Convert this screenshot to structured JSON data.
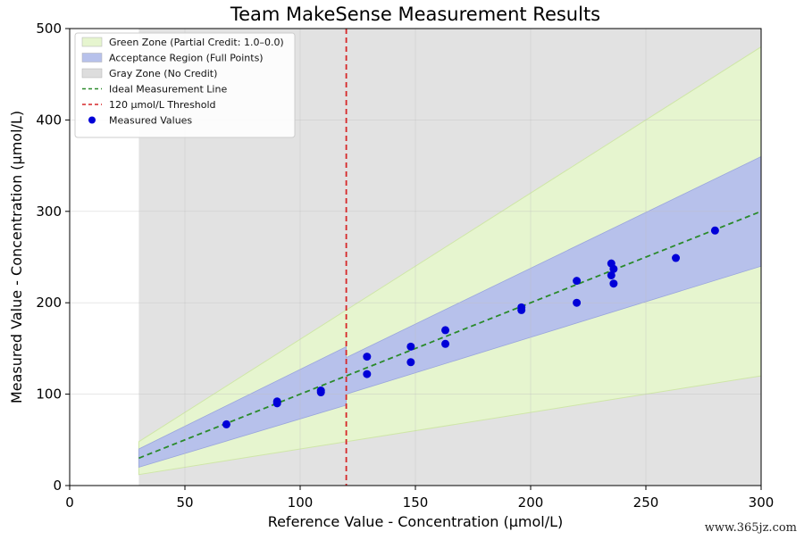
{
  "chart_data": {
    "type": "scatter",
    "title": "Team MakeSense Measurement Results",
    "xlabel": "Reference Value - Concentration (µmol/L)",
    "ylabel": "Measured Value - Concentration (µmol/L)",
    "xlim": [
      0,
      300
    ],
    "ylim": [
      0,
      500
    ],
    "xticks": [
      0,
      50,
      100,
      150,
      200,
      250,
      300
    ],
    "yticks": [
      0,
      100,
      200,
      300,
      400,
      500
    ],
    "grid": true,
    "legend_position": "top-left",
    "legend": [
      {
        "label": "Green Zone (Partial Credit: 1.0–0.0)",
        "kind": "patch",
        "color": "#e6f5cf"
      },
      {
        "label": "Acceptance Region (Full Points)",
        "kind": "patch",
        "color": "#b7c1eb"
      },
      {
        "label": "Gray Zone (No Credit)",
        "kind": "patch",
        "color": "#dddddd"
      },
      {
        "label": "Ideal Measurement Line",
        "kind": "dashed-line",
        "color": "#2a8a2a"
      },
      {
        "label": "120 µmol/L Threshold",
        "kind": "dashed-line",
        "color": "#d62728"
      },
      {
        "label": "Measured Values",
        "kind": "marker",
        "color": "#0000d8"
      }
    ],
    "gray_zone": {
      "x_from": 30,
      "x_to": 300,
      "color": "#e2e2e2"
    },
    "green_zone": {
      "upper": [
        [
          30,
          48
        ],
        [
          300,
          480
        ]
      ],
      "lower": [
        [
          30,
          12
        ],
        [
          300,
          120
        ]
      ],
      "color": "#e6f5cf"
    },
    "acceptance_region": {
      "upper": [
        [
          30,
          40
        ],
        [
          120,
          152
        ],
        [
          120,
          140
        ],
        [
          300,
          360
        ]
      ],
      "lower": [
        [
          30,
          20
        ],
        [
          120,
          88
        ],
        [
          120,
          100
        ],
        [
          300,
          240
        ]
      ],
      "color": "#b7c1eb"
    },
    "ideal_line": {
      "points": [
        [
          30,
          30
        ],
        [
          300,
          300
        ]
      ],
      "color": "#2a8a2a"
    },
    "threshold": {
      "x": 120,
      "color": "#d62728"
    },
    "series": [
      {
        "name": "Measured Values",
        "color": "#0000d8",
        "points": [
          [
            68,
            67
          ],
          [
            90,
            90
          ],
          [
            90,
            92
          ],
          [
            109,
            102
          ],
          [
            109,
            104
          ],
          [
            129,
            122
          ],
          [
            129,
            141
          ],
          [
            148,
            135
          ],
          [
            148,
            152
          ],
          [
            163,
            155
          ],
          [
            163,
            170
          ],
          [
            196,
            192
          ],
          [
            196,
            195
          ],
          [
            220,
            200
          ],
          [
            220,
            224
          ],
          [
            235,
            230
          ],
          [
            235,
            243
          ],
          [
            236,
            237
          ],
          [
            236,
            221
          ],
          [
            263,
            249
          ],
          [
            280,
            279
          ]
        ]
      }
    ]
  },
  "watermark": "www.365jz.com"
}
